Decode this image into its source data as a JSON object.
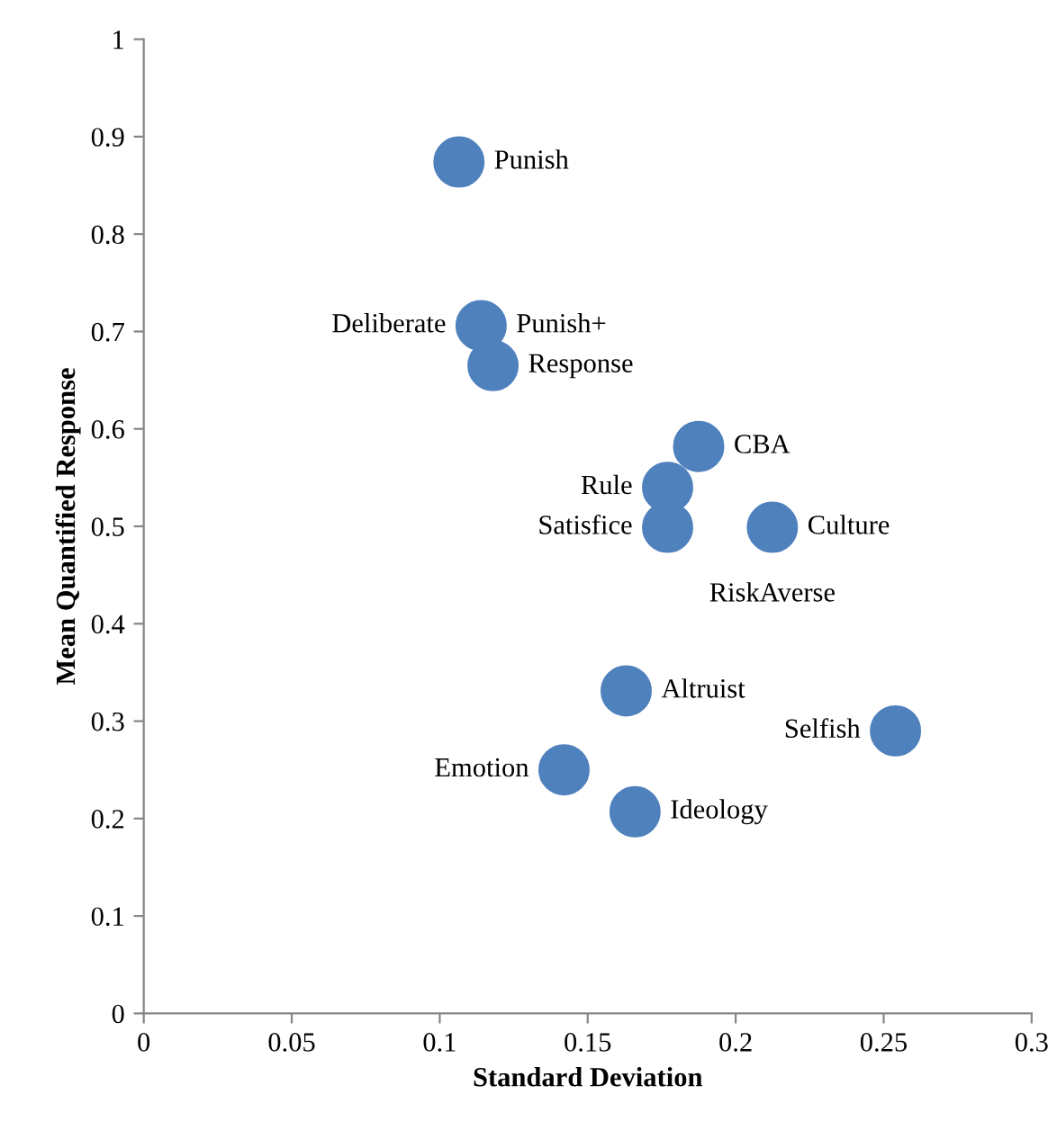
{
  "chart_data": {
    "type": "scatter",
    "xlabel": "Standard Deviation",
    "ylabel": "Mean Quantified Response",
    "x": [
      0.1065,
      0.114,
      0.118,
      0.1875,
      0.177,
      0.177,
      0.2124,
      0.163,
      0.254,
      0.142,
      0.166
    ],
    "series": [
      {
        "color": "#4f81bd",
        "values": [
          0.874,
          0.706,
          0.665,
          0.582,
          0.54,
          0.499,
          0.499,
          0.331,
          0.29,
          0.25,
          0.207
        ]
      }
    ],
    "annotations": [
      {
        "text": "Punish",
        "x": 0.1065,
        "y": 0.874
      },
      {
        "text": "Deliberate",
        "x": 0.114,
        "y": 0.706
      },
      {
        "text": "Punish+",
        "x": 0.114,
        "y": 0.706
      },
      {
        "text": "Response",
        "x": 0.118,
        "y": 0.665
      },
      {
        "text": "CBA",
        "x": 0.1875,
        "y": 0.582
      },
      {
        "text": "Rule",
        "x": 0.177,
        "y": 0.54
      },
      {
        "text": "Satisfice",
        "x": 0.177,
        "y": 0.499
      },
      {
        "text": "Culture",
        "x": 0.2124,
        "y": 0.499
      },
      {
        "text": "RiskAverse",
        "x": 0.2124,
        "y": 0.499
      },
      {
        "text": "Altruist",
        "x": 0.163,
        "y": 0.331
      },
      {
        "text": "Selfish",
        "x": 0.254,
        "y": 0.29
      },
      {
        "text": "Emotion",
        "x": 0.142,
        "y": 0.25
      },
      {
        "text": "Ideology",
        "x": 0.166,
        "y": 0.207
      }
    ],
    "marker": "circle",
    "xlim": [
      0,
      0.3
    ],
    "xticks": [
      0,
      0.05,
      0.1,
      0.15,
      0.2,
      0.25,
      0.3
    ],
    "ylim": [
      0,
      1
    ],
    "yticks": [
      0,
      0.1,
      0.2,
      0.3,
      0.4,
      0.5,
      0.6,
      0.7,
      0.8,
      0.9,
      1
    ],
    "grid": false,
    "legend": false
  }
}
